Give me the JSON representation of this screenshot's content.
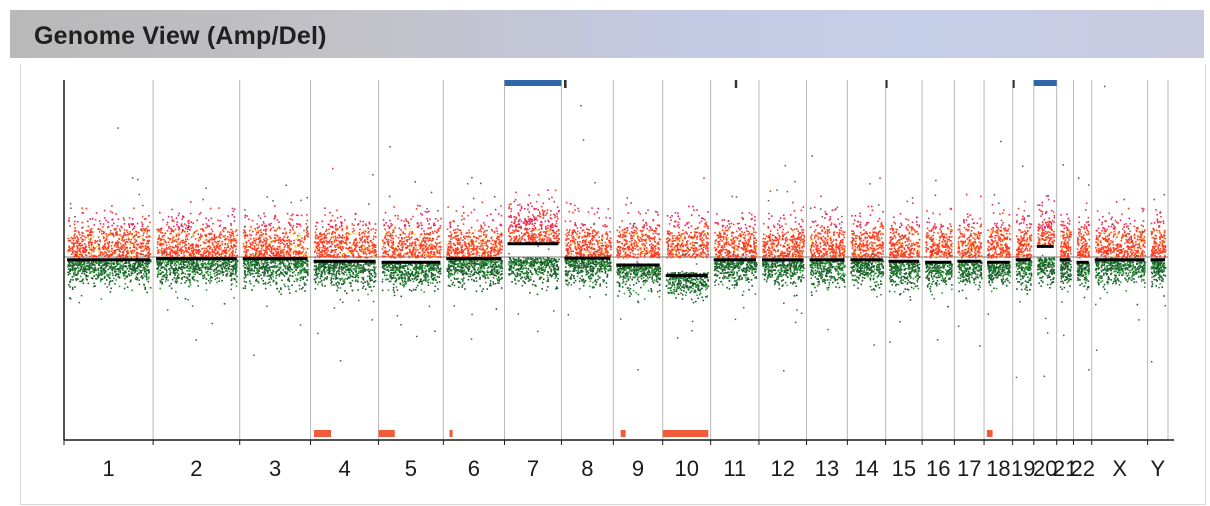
{
  "window": {
    "title": "Genome View (Amp/Del)"
  },
  "chart_data": {
    "type": "scatter",
    "title": "Genome View (Amp/Del)",
    "xlabel": "",
    "ylabel": "",
    "categories": [
      "1",
      "2",
      "3",
      "4",
      "5",
      "6",
      "7",
      "8",
      "9",
      "10",
      "11",
      "12",
      "13",
      "14",
      "15",
      "16",
      "17",
      "18",
      "19",
      "20",
      "21",
      "22",
      "X",
      "Y"
    ],
    "relative_lengths": [
      249,
      242,
      198,
      190,
      181,
      171,
      159,
      145,
      138,
      134,
      135,
      133,
      114,
      107,
      102,
      90,
      83,
      80,
      59,
      64,
      47,
      51,
      156,
      57
    ],
    "ylim": [
      -2.5,
      2.5
    ],
    "grid": "vertical chromosome boundaries",
    "colors": {
      "amplification": "#ff3b1e",
      "amplification_outlier": "#e8206a",
      "deletion": "#1a5e2a",
      "deletion_dot": "#2e9e3a",
      "segment_mean": "#000000",
      "gain_call": "#2f67a8",
      "loss_call": "#f25a3c"
    },
    "segments": [
      {
        "chr": "1",
        "mean": -0.05
      },
      {
        "chr": "2",
        "mean": -0.03
      },
      {
        "chr": "3",
        "mean": -0.03
      },
      {
        "chr": "4",
        "mean": -0.08
      },
      {
        "chr": "5",
        "mean": -0.1
      },
      {
        "chr": "6",
        "mean": -0.03
      },
      {
        "chr": "7",
        "mean": 0.25
      },
      {
        "chr": "8",
        "mean": -0.02
      },
      {
        "chr": "9",
        "mean": -0.15
      },
      {
        "chr": "10",
        "mean": -0.35
      },
      {
        "chr": "11",
        "mean": -0.05
      },
      {
        "chr": "12",
        "mean": -0.05
      },
      {
        "chr": "13",
        "mean": -0.05
      },
      {
        "chr": "14",
        "mean": -0.05
      },
      {
        "chr": "15",
        "mean": -0.08
      },
      {
        "chr": "16",
        "mean": -0.1
      },
      {
        "chr": "17",
        "mean": -0.08
      },
      {
        "chr": "18",
        "mean": -0.1
      },
      {
        "chr": "19",
        "mean": -0.05
      },
      {
        "chr": "20",
        "mean": 0.2
      },
      {
        "chr": "21",
        "mean": -0.05
      },
      {
        "chr": "22",
        "mean": -0.1
      },
      {
        "chr": "X",
        "mean": -0.05
      },
      {
        "chr": "Y",
        "mean": -0.05
      }
    ],
    "gain_calls": [
      {
        "chr": "7",
        "start": 0.0,
        "end": 1.0
      },
      {
        "chr": "20",
        "start": 0.0,
        "end": 1.0
      },
      {
        "chr": "8",
        "start": 0.05,
        "end": 0.1
      },
      {
        "chr": "11",
        "start": 0.5,
        "end": 0.55
      },
      {
        "chr": "15",
        "start": 0.0,
        "end": 0.05
      },
      {
        "chr": "19",
        "start": 0.0,
        "end": 0.05
      }
    ],
    "loss_calls": [
      {
        "chr": "4",
        "start": 0.05,
        "end": 0.3
      },
      {
        "chr": "5",
        "start": 0.0,
        "end": 0.25
      },
      {
        "chr": "6",
        "start": 0.1,
        "end": 0.15
      },
      {
        "chr": "9",
        "start": 0.15,
        "end": 0.25
      },
      {
        "chr": "10",
        "start": 0.0,
        "end": 0.95
      },
      {
        "chr": "18",
        "start": 0.1,
        "end": 0.3
      }
    ]
  }
}
